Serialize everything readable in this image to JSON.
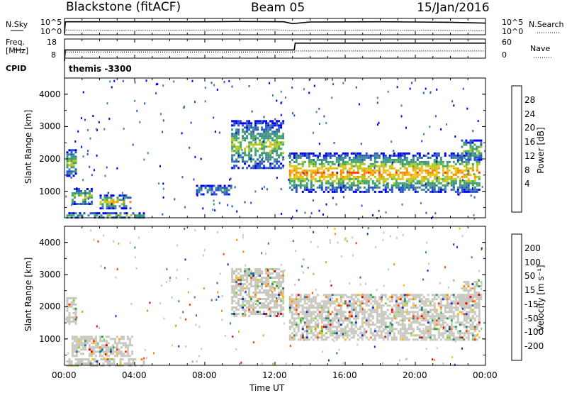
{
  "header": {
    "radar": "Blackstone (fitACF)",
    "beam": "Beam 05",
    "date": "15/Jan/2016"
  },
  "top_labels": {
    "nsky": "N.Sky",
    "nsearch": "N.Search",
    "freq": "Freq.",
    "freq_unit": "[MHz]",
    "nave": "Nave",
    "cpid": "CPID",
    "nsky_ticks": [
      "10^5",
      "10^0"
    ],
    "nsearch_ticks": [
      "10^5",
      "10^0"
    ],
    "freq_ticks": [
      "18",
      "8"
    ],
    "nave_ticks": [
      "60",
      "0"
    ],
    "program": "themis -3300"
  },
  "power_panel": {
    "ylabel": "Slant Range [km]",
    "yticks": [
      "4000",
      "3000",
      "2000",
      "1000"
    ],
    "colorbar_label": "Power [dB]",
    "colorbar_ticks": [
      "28",
      "24",
      "20",
      "16",
      "12",
      "8",
      "4"
    ],
    "colors": [
      "#0000ee",
      "#2a55c8",
      "#3f8c8c",
      "#3faa66",
      "#b2c820",
      "#f2c010",
      "#ff8800",
      "#ff3a00",
      "#e60000"
    ]
  },
  "velocity_panel": {
    "ylabel": "Slant Range [km]",
    "yticks": [
      "4000",
      "3000",
      "2000",
      "1000"
    ],
    "colorbar_label": "Velocity [m s⁻¹]",
    "colorbar_ticks": [
      "200",
      "100",
      "50",
      "15",
      "-15",
      "-50",
      "-100",
      "-200"
    ],
    "colors": [
      "#1a2fc8",
      "#2f7a8a",
      "#2fa04a",
      "#7cd23c",
      "#c8c8be",
      "#f5c000",
      "#ff8a00",
      "#ff4000",
      "#e60000"
    ]
  },
  "xaxis": {
    "label": "Time UT",
    "ticks": [
      "00:00",
      "04:00",
      "08:00",
      "12:00",
      "16:00",
      "20:00",
      "00:00"
    ]
  },
  "chart_data": [
    {
      "type": "line",
      "name": "noise-panel",
      "x_range_hours": [
        0,
        24
      ],
      "series": [
        {
          "name": "N.Sky",
          "style": "solid",
          "x": [
            0,
            0.05,
            0.1,
            4,
            8,
            10,
            12.5,
            13,
            14,
            18,
            20,
            22,
            24
          ],
          "y_log10": [
            0,
            4.2,
            4.3,
            4.3,
            4.3,
            4.4,
            4.3,
            3.6,
            4.2,
            4.3,
            4.2,
            4.1,
            3.8
          ]
        },
        {
          "name": "N.Search",
          "style": "dotted",
          "x": [
            0,
            0.05,
            0.1,
            4,
            8,
            12,
            13,
            14,
            18,
            24
          ],
          "y_log10": [
            0,
            1.2,
            1.2,
            1.1,
            1.2,
            1.3,
            1.0,
            1.1,
            1.2,
            1.0
          ]
        }
      ]
    },
    {
      "type": "line",
      "name": "frequency-panel",
      "x_range_hours": [
        0,
        24
      ],
      "series": [
        {
          "name": "Freq.",
          "style": "solid",
          "x": [
            0,
            0.05,
            0.1,
            13.1,
            13.15,
            24
          ],
          "y": [
            0,
            10.4,
            10.4,
            10.4,
            16.8,
            16.8
          ]
        },
        {
          "name": "Nave",
          "style": "dotted",
          "x": [
            0,
            0.1,
            13.1,
            13.15,
            24
          ],
          "y": [
            18,
            18,
            18,
            22,
            22
          ]
        }
      ]
    },
    {
      "type": "heatmap",
      "name": "power",
      "x_range_hours": [
        0,
        24
      ],
      "y_range_km": [
        180,
        4500
      ],
      "z_range_db": [
        0,
        30
      ],
      "regions": [
        {
          "x": [
            0.1,
            0.6
          ],
          "y": [
            1500,
            2300
          ],
          "level": 4
        },
        {
          "x": [
            0.1,
            4.5
          ],
          "y": [
            200,
            350
          ],
          "level": 3
        },
        {
          "x": [
            0.4,
            1.5
          ],
          "y": [
            600,
            1100
          ],
          "level": 4
        },
        {
          "x": [
            2.0,
            3.8
          ],
          "y": [
            500,
            900
          ],
          "level": 5
        },
        {
          "x": [
            7.5,
            9.5
          ],
          "y": [
            900,
            1200
          ],
          "level": 2
        },
        {
          "x": [
            9.5,
            12.5
          ],
          "y": [
            1700,
            3200
          ],
          "level": 4
        },
        {
          "x": [
            12.8,
            23.6
          ],
          "y": [
            1000,
            2200
          ],
          "level": 6
        },
        {
          "x": [
            22.6,
            23.7
          ],
          "y": [
            2000,
            2600
          ],
          "level": 4
        }
      ]
    },
    {
      "type": "heatmap",
      "name": "velocity",
      "x_range_hours": [
        0,
        24
      ],
      "y_range_km": [
        180,
        4500
      ],
      "z_range_ms": [
        -250,
        250
      ],
      "regions": [
        {
          "x": [
            0.1,
            0.6
          ],
          "y": [
            1500,
            2300
          ],
          "level": 4
        },
        {
          "x": [
            0.1,
            4.5
          ],
          "y": [
            200,
            400
          ],
          "level": 3
        },
        {
          "x": [
            0.4,
            3.8
          ],
          "y": [
            500,
            1100
          ],
          "level": 4
        },
        {
          "x": [
            9.5,
            12.5
          ],
          "y": [
            1700,
            3200
          ],
          "level": 4
        },
        {
          "x": [
            12.8,
            23.6
          ],
          "y": [
            1000,
            2400
          ],
          "level": 4
        },
        {
          "x": [
            22.6,
            23.7
          ],
          "y": [
            2000,
            2800
          ],
          "level": 4
        }
      ]
    }
  ]
}
